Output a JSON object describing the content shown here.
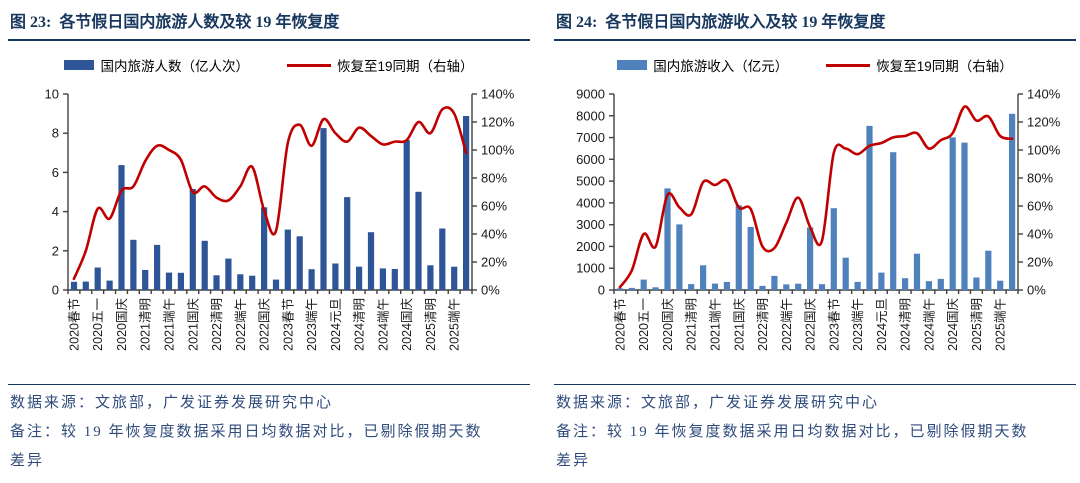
{
  "page": {
    "background": "#ffffff"
  },
  "colors": {
    "title_navy": "#17375E",
    "note_navy": "#2F4C7C",
    "bars_fig23": "#2E5597",
    "bars_fig24": "#4F81BD",
    "line_red": "#C00000"
  },
  "figures": [
    {
      "title": "图 23:  各节假日国内旅游人数及较 19 年恢复度",
      "legend": [
        {
          "label": "国内旅游人数（亿人次）",
          "type": "bar",
          "color": "#2E5597"
        },
        {
          "label": "恢复至19同期（右轴）",
          "type": "line",
          "color": "#C00000"
        }
      ],
      "source": "数据来源：文旅部，广发证券发展研究中心",
      "note_lines": [
        "备注：较 19 年恢复度数据采用日均数据对比，已剔除假期天数",
        "差异"
      ],
      "chart_data": {
        "type": "bar+line",
        "title": "各节假日国内旅游人数及较19年恢复度",
        "x_tick_labels": [
          "2020春节",
          "2020五一",
          "2020国庆",
          "2021清明",
          "2021端午",
          "2021国庆",
          "2022清明",
          "2022端午",
          "2022国庆",
          "2023春节",
          "2023端午",
          "2024元旦",
          "2024清明",
          "2024端午",
          "2024国庆",
          "2025清明",
          "2025端午"
        ],
        "x_tick_every": 2,
        "n_bars": 34,
        "bar_series": {
          "name": "国内旅游人数（亿人次）",
          "color": "#2E5597",
          "axis": "left",
          "values": [
            0.42,
            0.43,
            1.15,
            0.48,
            6.37,
            2.56,
            1.02,
            2.3,
            0.89,
            0.88,
            5.15,
            2.51,
            0.75,
            1.6,
            0.8,
            0.73,
            4.22,
            0.53,
            3.08,
            2.74,
            1.06,
            8.26,
            1.35,
            4.74,
            1.19,
            2.95,
            1.1,
            1.07,
            7.65,
            5.01,
            1.26,
            3.14,
            1.19,
            8.88
          ]
        },
        "line_series": {
          "name": "恢复至19同期（右轴）",
          "color": "#C00000",
          "axis": "right",
          "values_pct": [
            8,
            28,
            58,
            51,
            71,
            74,
            92,
            103,
            100,
            93,
            70,
            74,
            66,
            64,
            74,
            88,
            57,
            42,
            105,
            118,
            103,
            122,
            112,
            106,
            116,
            110,
            104,
            106,
            107,
            120,
            112,
            129,
            126,
            98
          ]
        },
        "left_axis": {
          "min": 0,
          "max": 10,
          "step": 2
        },
        "right_axis": {
          "min": 0,
          "max": 140,
          "step": 20,
          "suffix": "%"
        },
        "grid": false,
        "legend_position": "top"
      }
    },
    {
      "title": "图 24:  各节假日国内旅游收入及较 19 年恢复度",
      "legend": [
        {
          "label": "国内旅游收入（亿元）",
          "type": "bar",
          "color": "#4F81BD"
        },
        {
          "label": "恢复至19同期（右轴）",
          "type": "line",
          "color": "#C00000"
        }
      ],
      "source": "数据来源：文旅部，广发证券发展研究中心",
      "note_lines": [
        "备注：较 19 年恢复度数据采用日均数据对比，已剔除假期天数",
        "差异"
      ],
      "chart_data": {
        "type": "bar+line",
        "title": "各节假日国内旅游收入及较19年恢复度",
        "x_tick_labels": [
          "2020春节",
          "2020五一",
          "2020国庆",
          "2021清明",
          "2021端午",
          "2021国庆",
          "2022清明",
          "2022端午",
          "2022国庆",
          "2023春节",
          "2023端午",
          "2024元旦",
          "2024清明",
          "2024端午",
          "2024国庆",
          "2025清明",
          "2025端午"
        ],
        "x_tick_every": 2,
        "n_bars": 34,
        "bar_series": {
          "name": "国内旅游收入（亿元）",
          "color": "#4F81BD",
          "axis": "left",
          "values": [
            80,
            95,
            476,
            123,
            4666,
            3011,
            272,
            1132,
            294,
            372,
            3891,
            2892,
            188,
            647,
            258,
            287,
            2872,
            265,
            3758,
            1481,
            373,
            7534,
            797,
            6327,
            540,
            1669,
            404,
            510,
            7008,
            6770,
            575,
            1803,
            427,
            8090
          ]
        },
        "line_series": {
          "name": "恢复至19同期（右轴）",
          "color": "#C00000",
          "axis": "right",
          "values_pct": [
            2,
            14,
            40,
            31,
            68,
            59,
            54,
            77,
            75,
            78,
            59,
            58,
            31,
            30,
            48,
            66,
            45,
            35,
            98,
            101,
            97,
            103,
            105,
            109,
            110,
            112,
            101,
            107,
            112,
            131,
            121,
            124,
            110,
            108
          ]
        },
        "left_axis": {
          "min": 0,
          "max": 9000,
          "step": 1000
        },
        "right_axis": {
          "min": 0,
          "max": 140,
          "step": 20,
          "suffix": "%"
        },
        "grid": false,
        "legend_position": "top"
      }
    }
  ]
}
